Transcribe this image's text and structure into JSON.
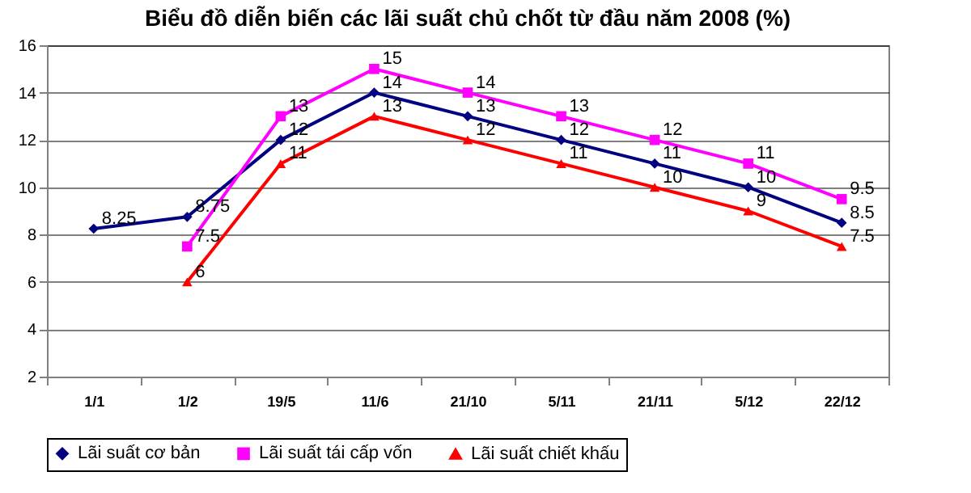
{
  "chart_data": {
    "type": "line",
    "title": "Biểu đồ diễn biến các lãi suất chủ chốt từ đầu năm 2008 (%)",
    "categories": [
      "1/1",
      "1/2",
      "19/5",
      "11/6",
      "21/10",
      "5/11",
      "21/11",
      "5/12",
      "22/12"
    ],
    "series": [
      {
        "name": "Lãi suất cơ bản",
        "color": "#000080",
        "marker": "diamond",
        "values": [
          8.25,
          8.75,
          12,
          14,
          13,
          12,
          11,
          10,
          8.5
        ]
      },
      {
        "name": "Lãi suất tái cấp vốn",
        "color": "#ff00ff",
        "marker": "square",
        "values": [
          null,
          7.5,
          13,
          15,
          14,
          13,
          12,
          11,
          9.5
        ]
      },
      {
        "name": "Lãi suất chiết khấu",
        "color": "#ff0000",
        "marker": "triangle",
        "values": [
          null,
          6,
          11,
          13,
          12,
          11,
          10,
          9,
          7.5
        ]
      }
    ],
    "ylim": [
      2,
      16
    ],
    "yticks": [
      2,
      4,
      6,
      8,
      10,
      12,
      14,
      16
    ],
    "grid": "y",
    "legend": "bottom",
    "data_labels": true
  }
}
